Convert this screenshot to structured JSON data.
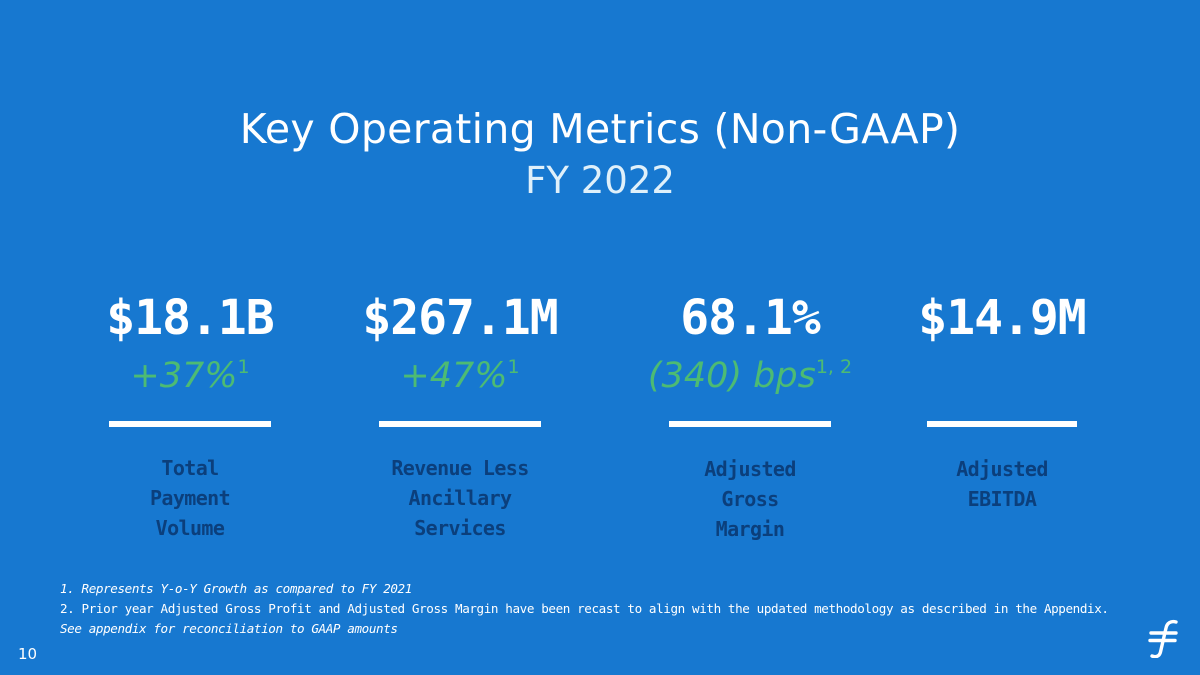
{
  "slide": {
    "title": "Key Operating Metrics (Non-GAAP)",
    "subtitle": "FY 2022",
    "page_number": "10"
  },
  "metrics": [
    {
      "value": "$18.1B",
      "change": "+37%",
      "change_note": "1",
      "label_lines": [
        "Total",
        "Payment",
        "Volume"
      ]
    },
    {
      "value": "$267.1M",
      "change": "+47%",
      "change_note": "1",
      "label_lines": [
        "Revenue Less",
        "Ancillary",
        "Services"
      ]
    },
    {
      "value": "68.1%",
      "change": "(340) bps",
      "change_note": "1, 2",
      "label_lines": [
        "Adjusted",
        "Gross",
        "Margin"
      ]
    },
    {
      "value": "$14.9M",
      "change": "",
      "change_note": "",
      "label_lines": [
        "Adjusted",
        "EBITDA"
      ]
    }
  ],
  "footnotes": [
    "1. Represents Y-o-Y Growth as compared to FY 2021",
    "2. Prior year Adjusted Gross Profit and Adjusted Gross Margin have been recast to align with the updated methodology as described in the Appendix.",
    "See appendix for reconciliation to GAAP amounts"
  ],
  "logo": {
    "icon": "flywire-f-logo-icon"
  },
  "colors": {
    "background": "#1778d0",
    "value": "#ffffff",
    "change": "#4dbb73",
    "label": "#0b3f7c"
  }
}
